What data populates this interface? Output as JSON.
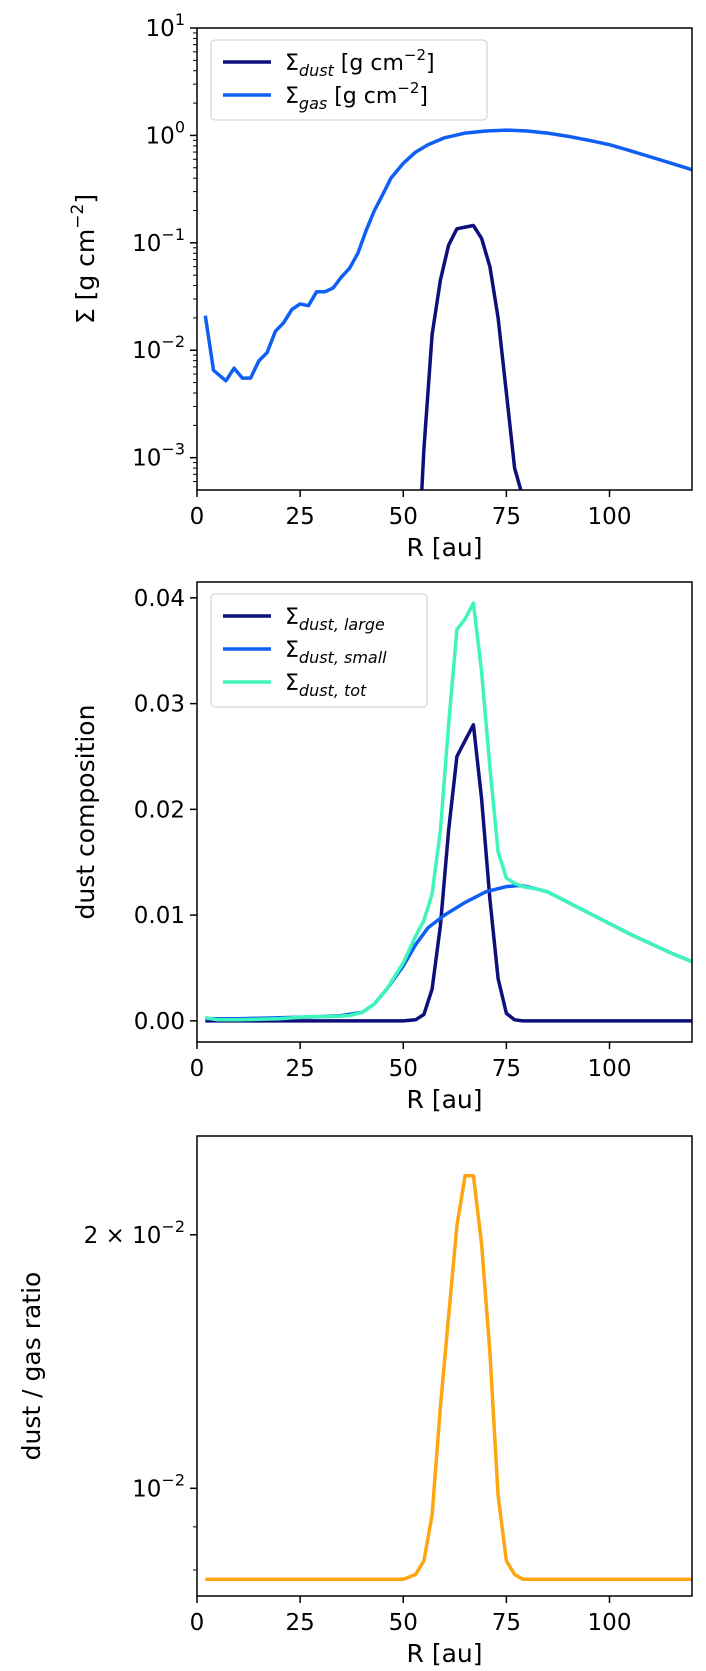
{
  "chart_data": [
    {
      "type": "line",
      "xlabel": "R [au]",
      "ylabel": "Σ [g cm",
      "ylabel_sup": "−2",
      "ylabel_close": "]",
      "yscale": "log",
      "xlim": [
        0,
        120
      ],
      "ylim": [
        0.0005,
        10
      ],
      "xticks": [
        0,
        25,
        50,
        75,
        100
      ],
      "xtick_labels": [
        "0",
        "25",
        "50",
        "75",
        "100"
      ],
      "yticks": [
        0.001,
        0.01,
        0.1,
        1,
        10
      ],
      "ytick_labels": [
        {
          "base": "10",
          "exp": "−3"
        },
        {
          "base": "10",
          "exp": "−2"
        },
        {
          "base": "10",
          "exp": "−1"
        },
        {
          "base": "10",
          "exp": "0"
        },
        {
          "base": "10",
          "exp": "1"
        }
      ],
      "legend": "top-left",
      "series": [
        {
          "name": "Σ",
          "name_sub": "dust",
          "name_suffix": " [g cm",
          "name_sup": "−2",
          "name_close": "]",
          "color": "#0f0f7c",
          "x": [
            54.5,
            55,
            57,
            59,
            61,
            63,
            65,
            67,
            69,
            71,
            73,
            75,
            77,
            78.5
          ],
          "y": [
            0.0005,
            0.0012,
            0.014,
            0.045,
            0.095,
            0.135,
            0.14,
            0.145,
            0.11,
            0.06,
            0.02,
            0.004,
            0.0008,
            0.0005
          ]
        },
        {
          "name": "Σ",
          "name_sub": "gas",
          "name_suffix": " [g cm",
          "name_sup": "−2",
          "name_close": "]",
          "color": "#0f5ff2",
          "x": [
            2,
            4,
            7,
            9,
            11,
            13,
            15,
            17,
            19,
            21,
            23,
            25,
            27,
            29,
            31,
            33,
            35,
            37,
            39,
            41,
            43,
            45,
            47,
            50,
            53,
            56,
            60,
            65,
            70,
            75,
            80,
            85,
            90,
            95,
            100,
            105,
            110,
            115,
            120
          ],
          "y": [
            0.021,
            0.0065,
            0.0052,
            0.0068,
            0.0055,
            0.0055,
            0.008,
            0.0095,
            0.015,
            0.018,
            0.024,
            0.027,
            0.026,
            0.035,
            0.035,
            0.038,
            0.048,
            0.058,
            0.08,
            0.13,
            0.2,
            0.28,
            0.4,
            0.55,
            0.7,
            0.82,
            0.95,
            1.05,
            1.1,
            1.12,
            1.1,
            1.05,
            0.98,
            0.9,
            0.82,
            0.72,
            0.63,
            0.55,
            0.48
          ]
        }
      ]
    },
    {
      "type": "line",
      "xlabel": "R [au]",
      "ylabel": "dust composition",
      "yscale": "linear",
      "xlim": [
        0,
        120
      ],
      "ylim": [
        -0.002,
        0.0415
      ],
      "xticks": [
        0,
        25,
        50,
        75,
        100
      ],
      "xtick_labels": [
        "0",
        "25",
        "50",
        "75",
        "100"
      ],
      "yticks": [
        0,
        0.01,
        0.02,
        0.03,
        0.04
      ],
      "ytick_labels": [
        "0.00",
        "0.01",
        "0.02",
        "0.03",
        "0.04"
      ],
      "legend": "top-left",
      "series": [
        {
          "name": "Σ",
          "name_sub": "dust, large",
          "color": "#0f0f7c",
          "x": [
            2,
            10,
            20,
            30,
            40,
            50,
            53,
            55,
            57,
            59,
            61,
            63,
            65,
            67,
            69,
            71,
            73,
            75,
            77,
            79,
            81,
            90,
            100,
            110,
            120
          ],
          "y": [
            0,
            0,
            0,
            0,
            0,
            0,
            0.0001,
            0.0006,
            0.003,
            0.009,
            0.018,
            0.025,
            0.0265,
            0.028,
            0.021,
            0.0115,
            0.004,
            0.0007,
            0.0001,
            0,
            0,
            0,
            0,
            0,
            0
          ]
        },
        {
          "name": "Σ",
          "name_sub": "dust, small",
          "color": "#0f5ff2",
          "x": [
            2,
            10,
            20,
            30,
            35,
            40,
            43,
            46,
            50,
            53,
            56,
            60,
            65,
            70,
            75,
            78,
            80,
            85,
            90,
            95,
            100,
            105,
            110,
            115,
            120
          ],
          "y": [
            0.0002,
            0.0002,
            0.0003,
            0.0004,
            0.0005,
            0.0008,
            0.0016,
            0.003,
            0.0052,
            0.0072,
            0.0088,
            0.01,
            0.0112,
            0.0122,
            0.0127,
            0.0128,
            0.0127,
            0.0122,
            0.0112,
            0.0102,
            0.0092,
            0.0082,
            0.0073,
            0.0064,
            0.0056
          ]
        },
        {
          "name": "Σ",
          "name_sub": "dust, tot",
          "color": "#3ef5bc",
          "x": [
            2,
            5,
            10,
            20,
            27,
            32,
            37,
            40,
            43,
            46,
            50,
            53,
            55,
            57,
            59,
            61,
            63,
            65,
            67,
            69,
            71,
            73,
            75,
            77,
            79,
            82,
            85,
            90,
            95,
            100,
            105,
            110,
            115,
            120
          ],
          "y": [
            0.0003,
            0.0001,
            0.0001,
            0.0002,
            0.0004,
            0.0004,
            0.0005,
            0.0008,
            0.0016,
            0.003,
            0.0055,
            0.008,
            0.0095,
            0.012,
            0.018,
            0.028,
            0.037,
            0.038,
            0.0395,
            0.033,
            0.024,
            0.016,
            0.0135,
            0.013,
            0.0127,
            0.0125,
            0.0122,
            0.0112,
            0.0102,
            0.0092,
            0.0082,
            0.0073,
            0.0064,
            0.0056
          ]
        }
      ]
    },
    {
      "type": "line",
      "xlabel": "R [au]",
      "ylabel": "dust / gas ratio",
      "yscale": "log",
      "xlim": [
        0,
        120
      ],
      "ylim": [
        0.00745,
        0.0262
      ],
      "xticks": [
        0,
        25,
        50,
        75,
        100
      ],
      "xtick_labels": [
        "0",
        "25",
        "50",
        "75",
        "100"
      ],
      "yticks": [
        0.01,
        0.02
      ],
      "ytick_labels": [
        {
          "base": "10",
          "exp": "−2",
          "coef": ""
        },
        {
          "base": "10",
          "exp": "−2",
          "coef": "2 × "
        }
      ],
      "minor_yticks": [
        0.008,
        0.009,
        0.03
      ],
      "legend": "none",
      "series": [
        {
          "name": "",
          "color": "#ffa50f",
          "x": [
            2,
            10,
            20,
            30,
            40,
            50,
            53,
            55,
            57,
            59,
            61,
            63,
            65,
            67,
            69,
            71,
            73,
            75,
            77,
            79,
            85,
            95,
            105,
            120
          ],
          "y": [
            0.0078,
            0.0078,
            0.0078,
            0.0078,
            0.0078,
            0.0078,
            0.0079,
            0.0082,
            0.0093,
            0.0125,
            0.016,
            0.0205,
            0.0235,
            0.0235,
            0.0195,
            0.0145,
            0.0098,
            0.0082,
            0.0079,
            0.0078,
            0.0078,
            0.0078,
            0.0078,
            0.0078
          ]
        }
      ]
    }
  ]
}
